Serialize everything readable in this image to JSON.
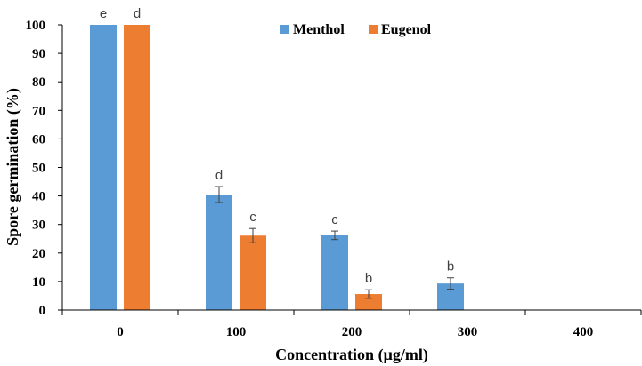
{
  "chart_data": {
    "type": "bar",
    "title": "",
    "xlabel": "Concentration (µg/ml)",
    "ylabel": "Spore germination (%)",
    "categories": [
      "0",
      "100",
      "200",
      "300",
      "400"
    ],
    "ylim": [
      0,
      100
    ],
    "yticks": [
      "0",
      "10",
      "20",
      "30",
      "40",
      "50",
      "60",
      "70",
      "80",
      "90",
      "100"
    ],
    "legend_position": "top-right",
    "series": [
      {
        "name": "Menthol",
        "color": "#5B9BD5",
        "values": [
          100,
          40.5,
          26.2,
          9.3,
          0
        ],
        "errors": [
          0,
          2.8,
          1.5,
          2.0,
          0
        ],
        "letters": [
          "e",
          "d",
          "c",
          "b",
          ""
        ]
      },
      {
        "name": "Eugenol",
        "color": "#ED7D31",
        "values": [
          100,
          26.1,
          5.6,
          0,
          0
        ],
        "errors": [
          0,
          2.5,
          1.5,
          0,
          0
        ],
        "letters": [
          "d",
          "c",
          "b",
          "",
          ""
        ]
      }
    ]
  }
}
